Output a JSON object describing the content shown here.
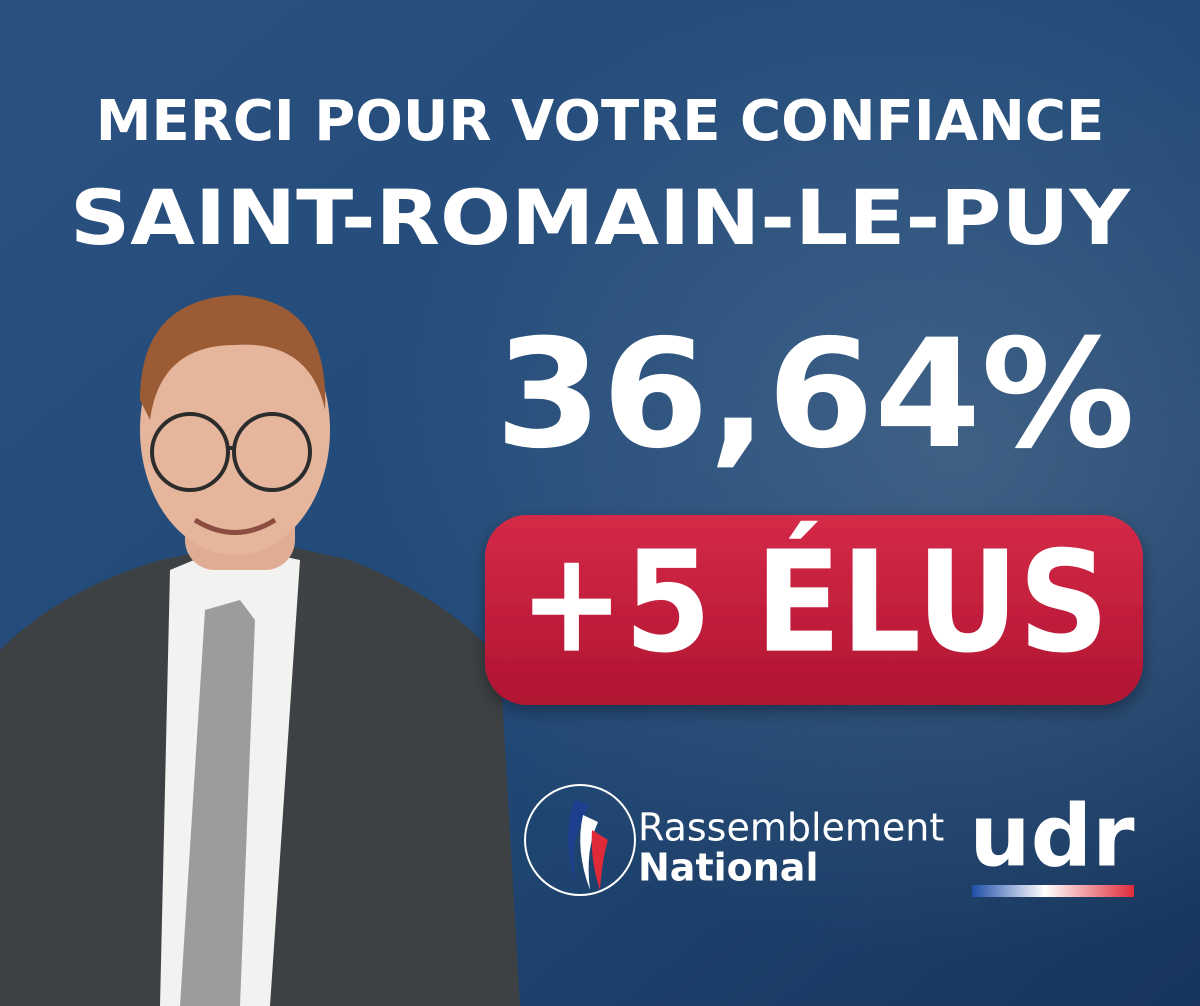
{
  "header": {
    "title": "MERCI POUR VOTRE CONFIANCE",
    "location": "SAINT-ROMAIN-LE-PUY"
  },
  "result": {
    "score": "36,64%",
    "seats": "+5 ÉLUS"
  },
  "logos": {
    "party_line1": "Rassemblement",
    "party_line2": "National",
    "ally": "udr"
  }
}
